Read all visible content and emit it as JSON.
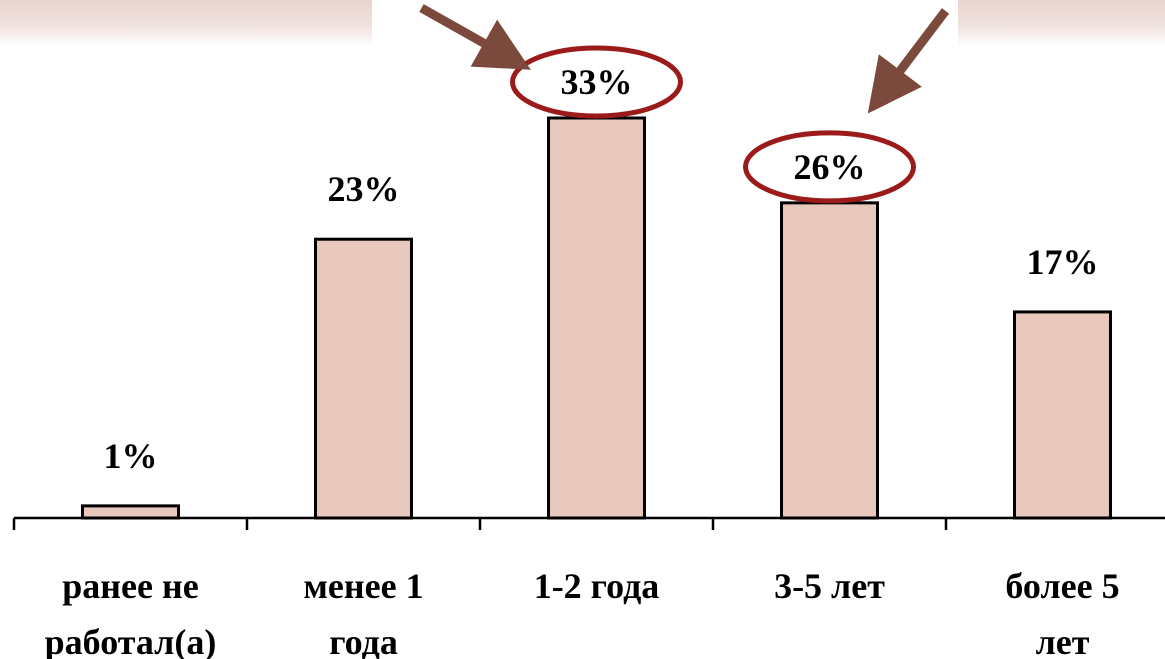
{
  "chart_data": {
    "type": "bar",
    "categories": [
      [
        "ранее не",
        "работал(а)"
      ],
      [
        "менее 1",
        "года"
      ],
      [
        "1-2 года"
      ],
      [
        "3-5 лет"
      ],
      [
        "более 5",
        "лет"
      ]
    ],
    "values": [
      1,
      23,
      33,
      26,
      17
    ],
    "value_labels": [
      "1%",
      "23%",
      "33%",
      "26%",
      "17%"
    ],
    "unit": "%",
    "ylim": [
      0,
      33
    ],
    "grid": false,
    "highlighted": [
      "33%",
      "26%"
    ]
  },
  "colors": {
    "bar_fill": "#e8c7bc",
    "bar_stroke": "#000000",
    "highlight_ring": "#9b1b1b",
    "arrow": "#7b4a3c",
    "header_band": "#e9d3cf"
  }
}
